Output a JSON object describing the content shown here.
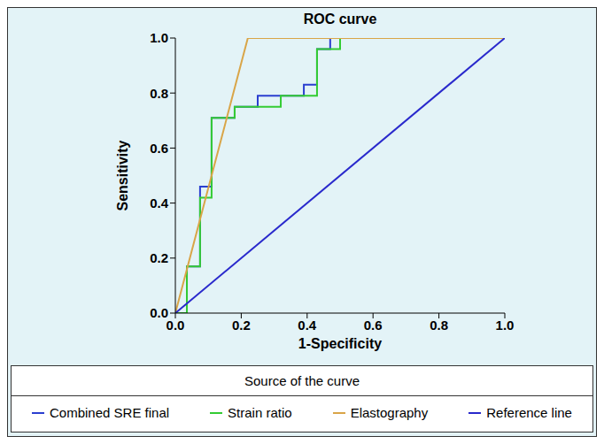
{
  "chart_data": {
    "type": "line",
    "title": "ROC curve",
    "x_label": "1-Specificity",
    "y_label": "Sensitivity",
    "legend_title": "Source of the curve",
    "legend": "bottom",
    "grid": false,
    "xlim": [
      0,
      1
    ],
    "ylim": [
      0,
      1
    ],
    "xticks": [
      {
        "value": 0,
        "label": "0.0"
      },
      0.2,
      0.4,
      0.6,
      0.8,
      {
        "value": 1,
        "label": "1.0"
      }
    ],
    "yticks": [
      {
        "value": 0,
        "label": "0.0"
      },
      0.2,
      0.4,
      0.6,
      0.8,
      {
        "value": 1,
        "label": "1.0"
      }
    ],
    "series": [
      {
        "name": "Combined SRE final",
        "color": "#2b3fd0",
        "x": [
          0,
          0.035,
          0.035,
          0.075,
          0.075,
          0.11,
          0.11,
          0.18,
          0.18,
          0.25,
          0.25,
          0.39,
          0.39,
          0.43,
          0.43,
          0.47,
          0.47,
          1
        ],
        "values": [
          0,
          0,
          0.17,
          0.17,
          0.46,
          0.46,
          0.71,
          0.71,
          0.75,
          0.75,
          0.79,
          0.79,
          0.83,
          0.83,
          0.96,
          0.96,
          1,
          1
        ]
      },
      {
        "name": "Strain ratio",
        "color": "#33cc33",
        "x": [
          0,
          0.035,
          0.035,
          0.075,
          0.075,
          0.11,
          0.11,
          0.18,
          0.18,
          0.32,
          0.32,
          0.43,
          0.43,
          0.5,
          0.5,
          1
        ],
        "values": [
          0,
          0,
          0.17,
          0.17,
          0.42,
          0.42,
          0.71,
          0.71,
          0.75,
          0.75,
          0.79,
          0.79,
          0.96,
          0.96,
          1,
          1
        ]
      },
      {
        "name": "Elastography",
        "color": "#d9a548",
        "x": [
          0,
          0.22,
          1
        ],
        "values": [
          0,
          1,
          1
        ]
      },
      {
        "name": "Reference line",
        "color": "#2929cc",
        "x": [
          0,
          1
        ],
        "values": [
          0,
          1
        ]
      }
    ]
  }
}
